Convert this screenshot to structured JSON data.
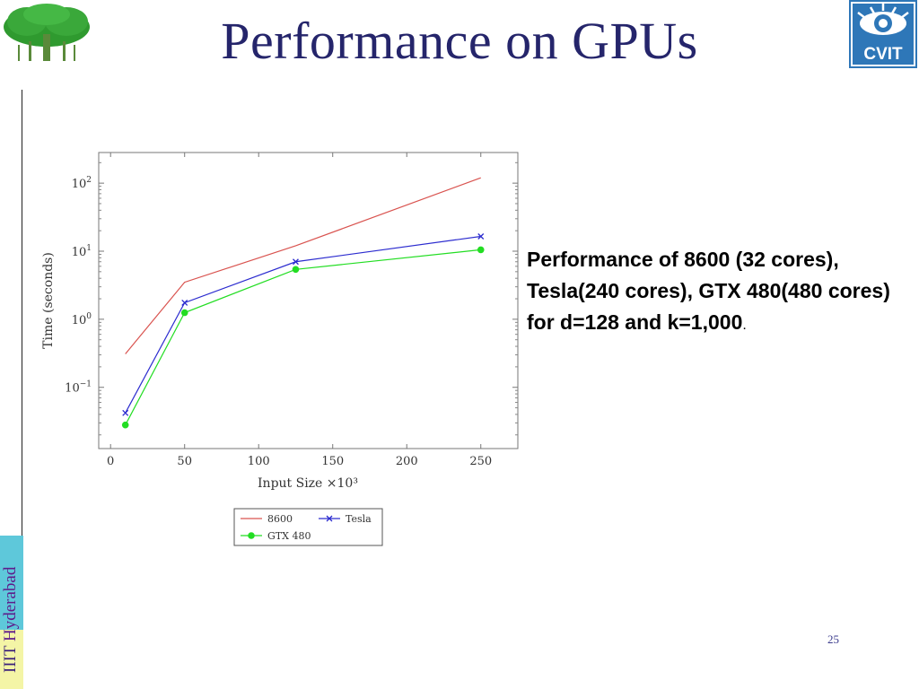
{
  "slide": {
    "title": "Performance on GPUs",
    "description": "Performance of 8600 (32 cores), Tesla(240 cores), GTX 480(480 cores) for d=128 and k=1,000",
    "description_end": ".",
    "page_number": "25"
  },
  "sidebar": {
    "iiit": "IIIT",
    "hyderabad": "Hyderabad"
  },
  "logos": {
    "right_logo_text": "CVIT"
  },
  "colors": {
    "title": "#25256b",
    "sidebar_blue": "#5ec8da",
    "sidebar_yellow": "#f4f5a6",
    "series_8600": "#d9534f",
    "series_tesla": "#2c2ccf",
    "series_gtx480": "#22dd22"
  },
  "chart_data": {
    "type": "line",
    "xlabel": "Input Size ×10³",
    "ylabel": "Time (seconds)",
    "xlim": [
      -8,
      275
    ],
    "ylim_log10": [
      -1.9,
      2.45
    ],
    "yscale": "log",
    "grid": false,
    "legend_placement": "below",
    "x_ticks": [
      0,
      50,
      100,
      150,
      200,
      250
    ],
    "y_ticks": [
      {
        "exp": -1,
        "base": "10",
        "sup": "−1"
      },
      {
        "exp": 0,
        "base": "10",
        "sup": "0"
      },
      {
        "exp": 1,
        "base": "10",
        "sup": "1"
      },
      {
        "exp": 2,
        "base": "10",
        "sup": "2"
      }
    ],
    "series": [
      {
        "name": "8600",
        "color": "#d9534f",
        "marker": "none",
        "x": [
          10,
          50,
          125,
          250
        ],
        "y": [
          0.31,
          3.5,
          12,
          120
        ]
      },
      {
        "name": "Tesla",
        "color": "#2c2ccf",
        "marker": "x",
        "x": [
          10,
          50,
          125,
          250
        ],
        "y": [
          0.042,
          1.75,
          7.0,
          16.5
        ]
      },
      {
        "name": "GTX 480",
        "color": "#22dd22",
        "marker": "dot",
        "x": [
          10,
          50,
          125,
          250
        ],
        "y": [
          0.028,
          1.25,
          5.4,
          10.5
        ]
      }
    ]
  }
}
